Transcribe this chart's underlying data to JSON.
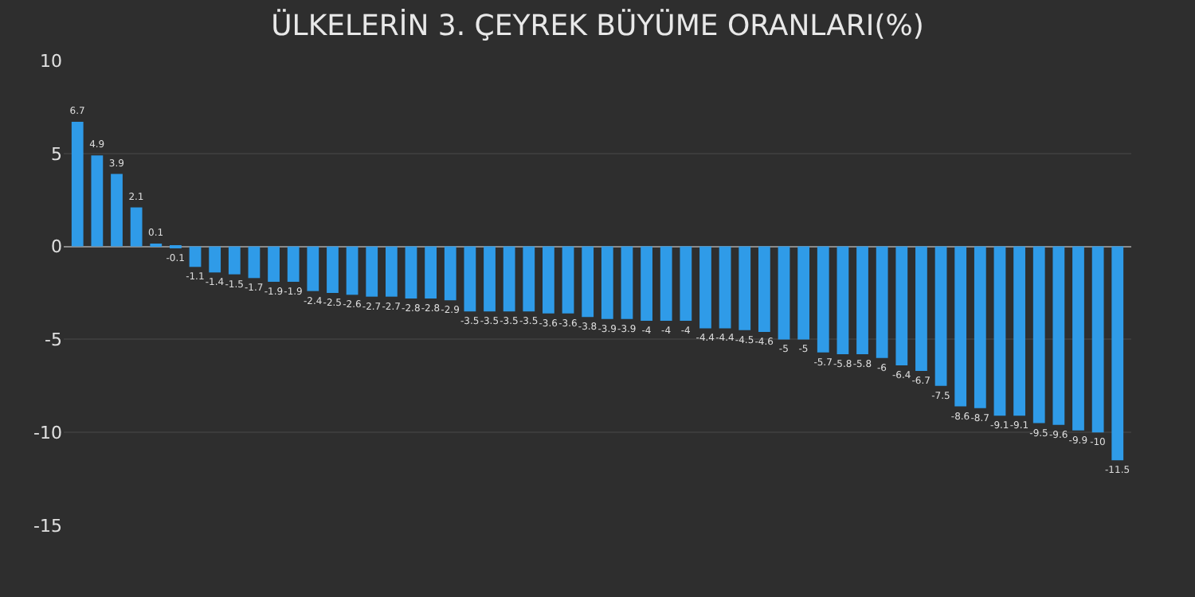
{
  "chart_data": {
    "type": "bar",
    "title": "ÜLKELERİN 3. ÇEYREK BÜYÜME ORANLARI(%)",
    "categories": [
      null,
      null,
      null,
      null,
      null,
      null,
      null,
      null,
      null,
      null,
      null,
      null,
      null,
      null,
      null,
      null,
      null,
      null,
      null,
      null,
      null,
      null,
      null,
      null,
      null,
      null,
      null,
      null,
      null,
      null,
      null,
      null,
      null,
      null,
      null,
      null,
      null,
      null,
      null,
      null,
      null,
      null,
      null,
      null,
      null,
      null,
      null,
      null,
      null,
      null,
      null,
      null,
      null,
      null
    ],
    "values": [
      6.7,
      4.9,
      3.9,
      2.1,
      0.1,
      -0.1,
      -1.1,
      -1.4,
      -1.5,
      -1.7,
      -1.9,
      -1.9,
      -2.4,
      -2.5,
      -2.6,
      -2.7,
      -2.7,
      -2.8,
      -2.8,
      -2.9,
      -3.5,
      -3.5,
      -3.5,
      -3.5,
      -3.6,
      -3.6,
      -3.8,
      -3.9,
      -3.9,
      -4,
      -4,
      -4,
      -4.4,
      -4.4,
      -4.5,
      -4.6,
      -5,
      -5,
      -5.7,
      -5.8,
      -5.8,
      -6,
      -6.4,
      -6.7,
      -7.5,
      -8.6,
      -8.7,
      -9.1,
      -9.1,
      -9.5,
      -9.6,
      -9.9,
      -10,
      -11.5
    ],
    "color": "#2f9be8",
    "ylim": [
      -15,
      10
    ],
    "yticks": [
      -15,
      -10,
      -5,
      0,
      5,
      10
    ],
    "grid": "y",
    "data_labels": true
  }
}
